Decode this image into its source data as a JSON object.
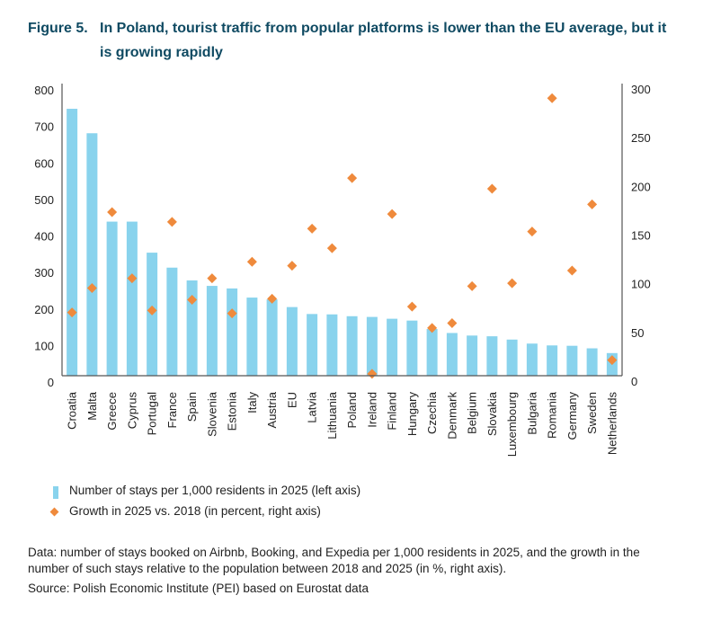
{
  "title": {
    "figure_number": "Figure 5.",
    "text": "In Poland, tourist traffic from popular platforms is lower than the EU average, but it is growing rapidly"
  },
  "chart_data": {
    "type": "bar+scatter",
    "title": "In Poland, tourist traffic from popular platforms is lower than the EU average, but it is growing rapidly",
    "categories": [
      "Croatia",
      "Malta",
      "Greece",
      "Cyprus",
      "Portugal",
      "France",
      "Spain",
      "Slovenia",
      "Estonia",
      "Italy",
      "Austria",
      "EU",
      "Latvia",
      "Lithuania",
      "Poland",
      "Ireland",
      "Finland",
      "Hungary",
      "Czechia",
      "Denmark",
      "Belgium",
      "Slovakia",
      "Luxembourg",
      "Bulgaria",
      "Romania",
      "Germany",
      "Sweden",
      "Netherlands"
    ],
    "series": [
      {
        "name": "Number of stays per 1,000 residents in 2025 (left axis)",
        "type": "bar",
        "axis": "left",
        "color": "#89d3ed",
        "values": [
          731,
          664,
          422,
          422,
          337,
          296,
          261,
          246,
          239,
          214,
          209,
          188,
          169,
          168,
          163,
          161,
          156,
          151,
          128,
          117,
          110,
          108,
          99,
          88,
          83,
          82,
          75,
          62
        ]
      },
      {
        "name": "Growth in 2025 vs. 2018 (in percent, right axis)",
        "type": "scatter",
        "marker": "diamond",
        "axis": "right",
        "color": "#ef8a3c",
        "values": [
          65,
          90,
          168,
          100,
          67,
          158,
          78,
          100,
          64,
          117,
          79,
          113,
          151,
          131,
          203,
          2,
          166,
          71,
          49,
          54,
          92,
          192,
          95,
          148,
          285,
          108,
          176,
          16
        ]
      }
    ],
    "left_axis": {
      "ylim": [
        0,
        800
      ],
      "ticks": [
        "0",
        "100",
        "200",
        "300",
        "400",
        "500",
        "600",
        "700",
        "800"
      ]
    },
    "right_axis": {
      "ylim": [
        0,
        300
      ],
      "ticks": [
        "0",
        "50",
        "100",
        "150",
        "200",
        "250",
        "300"
      ]
    },
    "xlabel": "",
    "grid": false,
    "legend_position": "bottom-left"
  },
  "legend": [
    {
      "label": "Number of stays per 1,000 residents in 2025 (left axis)",
      "marker": "bar"
    },
    {
      "label": "Growth in 2025 vs. 2018 (in percent, right axis)",
      "marker": "diamond"
    }
  ],
  "note": "Data: number of stays booked on Airbnb, Booking, and Expedia per 1,000 residents in 2025, and the growth in the number of such stays relative to the population between 2018 and 2025 (in %, right axis).",
  "source": "Source: Polish Economic Institute (PEI) based on Eurostat data"
}
